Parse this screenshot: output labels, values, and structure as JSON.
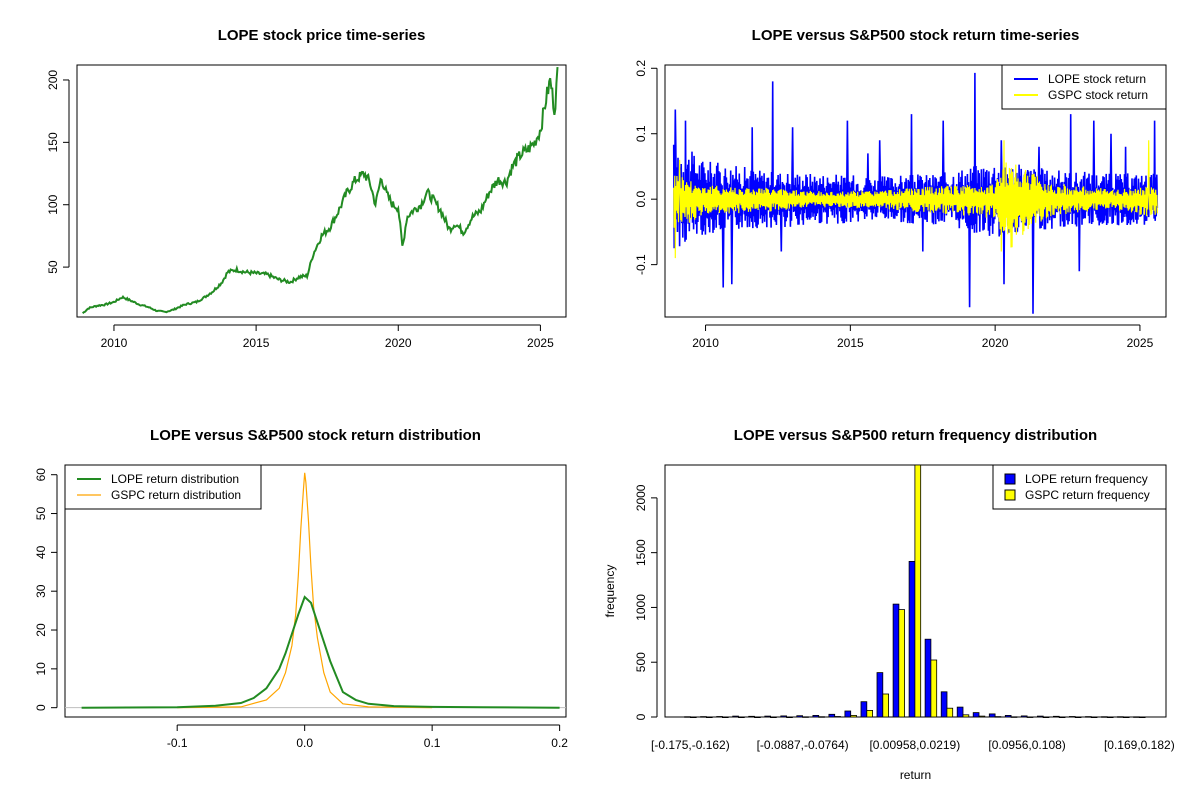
{
  "colors": {
    "price": "#228B22",
    "lope": "#0000FF",
    "gspc": "#FFFF00",
    "gspc_density": "#FFA500",
    "lope_density": "#228B22",
    "zero_line": "#BEBEBE"
  },
  "chart_data": [
    {
      "id": "price",
      "type": "line",
      "title": "LOPE stock price time-series",
      "xlabel": "",
      "ylabel": "",
      "xlim": [
        2008.7,
        2025.9
      ],
      "ylim": [
        10,
        212
      ],
      "x_ticks": [
        2010,
        2015,
        2020,
        2025
      ],
      "x_tick_labels": [
        "2010",
        "2015",
        "2020",
        "2025"
      ],
      "y_ticks": [
        50,
        100,
        150,
        200
      ],
      "y_tick_labels": [
        "50",
        "100",
        "150",
        "200"
      ],
      "grid": false,
      "series": [
        {
          "color": "#228B22",
          "x": [
            2008.9,
            2009.1,
            2009.4,
            2009.7,
            2010.0,
            2010.3,
            2010.6,
            2010.9,
            2011.2,
            2011.5,
            2011.8,
            2012.1,
            2012.5,
            2012.9,
            2013.2,
            2013.5,
            2013.8,
            2014.0,
            2014.3,
            2014.6,
            2015.0,
            2015.4,
            2015.8,
            2016.2,
            2016.5,
            2016.8,
            2017.0,
            2017.3,
            2017.6,
            2017.9,
            2018.2,
            2018.5,
            2018.8,
            2019.0,
            2019.2,
            2019.4,
            2019.6,
            2019.8,
            2020.0,
            2020.15,
            2020.3,
            2020.5,
            2020.8,
            2021.0,
            2021.2,
            2021.5,
            2021.8,
            2022.0,
            2022.3,
            2022.6,
            2022.9,
            2023.2,
            2023.5,
            2023.8,
            2024.0,
            2024.3,
            2024.6,
            2024.8,
            2025.0,
            2025.2,
            2025.35,
            2025.5,
            2025.6
          ],
          "y": [
            13,
            17,
            19,
            20,
            22,
            26,
            23,
            20,
            18,
            15,
            14,
            16,
            20,
            22,
            26,
            31,
            38,
            46,
            48,
            46,
            45,
            44,
            40,
            38,
            42,
            43,
            60,
            75,
            82,
            95,
            110,
            120,
            125,
            118,
            100,
            122,
            108,
            100,
            98,
            65,
            90,
            95,
            100,
            110,
            105,
            95,
            80,
            85,
            78,
            90,
            95,
            110,
            120,
            118,
            130,
            140,
            145,
            150,
            160,
            185,
            200,
            175,
            205
          ]
        }
      ]
    },
    {
      "id": "returns",
      "type": "line",
      "title": "LOPE versus S&P500 stock return time-series",
      "xlabel": "",
      "ylabel": "",
      "xlim": [
        2008.6,
        2025.9
      ],
      "ylim": [
        -0.18,
        0.205
      ],
      "x_ticks": [
        2010,
        2015,
        2020,
        2025
      ],
      "x_tick_labels": [
        "2010",
        "2015",
        "2020",
        "2025"
      ],
      "y_ticks": [
        -0.1,
        0.0,
        0.1,
        0.2
      ],
      "y_tick_labels": [
        "-0.1",
        "0.0",
        "0.1",
        "0.2"
      ],
      "grid": false,
      "legend_position": "top-right",
      "series": [
        {
          "name": "LOPE stock return",
          "color": "#0000FF",
          "band_x": [
            2008.9,
            2010.0,
            2012.0,
            2014.0,
            2016.0,
            2018.0,
            2020.0,
            2022.0,
            2024.0,
            2025.6
          ],
          "band_hi": [
            0.09,
            0.06,
            0.045,
            0.04,
            0.035,
            0.04,
            0.06,
            0.045,
            0.04,
            0.04
          ],
          "band_lo": [
            -0.08,
            -0.055,
            -0.045,
            -0.04,
            -0.035,
            -0.04,
            -0.06,
            -0.045,
            -0.04,
            -0.04
          ],
          "spikes": [
            [
              2008.95,
              0.137
            ],
            [
              2009.3,
              0.12
            ],
            [
              2010.6,
              -0.135
            ],
            [
              2010.9,
              -0.13
            ],
            [
              2011.6,
              0.11
            ],
            [
              2012.3,
              0.18
            ],
            [
              2012.6,
              -0.08
            ],
            [
              2013.0,
              0.11
            ],
            [
              2014.9,
              0.12
            ],
            [
              2015.6,
              0.07
            ],
            [
              2016.0,
              0.09
            ],
            [
              2017.1,
              0.13
            ],
            [
              2017.5,
              -0.08
            ],
            [
              2018.2,
              0.12
            ],
            [
              2019.1,
              -0.165
            ],
            [
              2019.3,
              0.193
            ],
            [
              2020.2,
              0.09
            ],
            [
              2020.3,
              -0.13
            ],
            [
              2021.3,
              -0.175
            ],
            [
              2021.5,
              0.08
            ],
            [
              2022.6,
              0.13
            ],
            [
              2022.9,
              -0.11
            ],
            [
              2023.4,
              0.12
            ],
            [
              2024.0,
              0.1
            ],
            [
              2024.5,
              0.08
            ],
            [
              2025.5,
              0.12
            ]
          ]
        },
        {
          "name": "GSPC stock return",
          "color": "#FFFF00",
          "band_x": [
            2008.9,
            2009.3,
            2010.0,
            2012.0,
            2014.0,
            2016.0,
            2018.0,
            2020.0,
            2020.4,
            2022.0,
            2024.0,
            2025.6
          ],
          "band_hi": [
            0.045,
            0.035,
            0.022,
            0.018,
            0.012,
            0.014,
            0.02,
            0.025,
            0.06,
            0.025,
            0.015,
            0.02
          ],
          "band_lo": [
            -0.05,
            -0.04,
            -0.025,
            -0.02,
            -0.013,
            -0.015,
            -0.022,
            -0.03,
            -0.08,
            -0.025,
            -0.015,
            -0.03
          ],
          "spikes": [
            [
              2008.95,
              -0.09
            ],
            [
              2009.1,
              0.06
            ],
            [
              2020.2,
              -0.08
            ],
            [
              2020.3,
              0.09
            ],
            [
              2025.3,
              0.09
            ]
          ]
        }
      ]
    },
    {
      "id": "density",
      "type": "line",
      "title": "LOPE versus S&P500 stock return distribution",
      "xlabel": "",
      "ylabel": "",
      "xlim": [
        -0.188,
        0.205
      ],
      "ylim": [
        -2.4,
        62.5
      ],
      "x_ticks": [
        -0.1,
        0.0,
        0.1,
        0.2
      ],
      "x_tick_labels": [
        "-0.1",
        "0.0",
        "0.1",
        "0.2"
      ],
      "y_ticks": [
        0,
        10,
        20,
        30,
        40,
        50,
        60
      ],
      "y_tick_labels": [
        "0",
        "10",
        "20",
        "30",
        "40",
        "50",
        "60"
      ],
      "grid": false,
      "legend_position": "top-left",
      "series": [
        {
          "name": "LOPE return distribution",
          "color": "#228B22",
          "x": [
            -0.175,
            -0.1,
            -0.07,
            -0.05,
            -0.04,
            -0.03,
            -0.02,
            -0.015,
            -0.01,
            -0.005,
            0.0,
            0.005,
            0.01,
            0.015,
            0.02,
            0.025,
            0.03,
            0.04,
            0.05,
            0.07,
            0.1,
            0.14,
            0.2
          ],
          "y": [
            0,
            0.1,
            0.5,
            1.2,
            2.5,
            5,
            10,
            14,
            19,
            24,
            28.5,
            27,
            22,
            17,
            12,
            8,
            4,
            2,
            1,
            0.4,
            0.2,
            0.1,
            0
          ]
        },
        {
          "name": "GSPC return distribution",
          "color": "#FFA500",
          "x": [
            -0.1,
            -0.05,
            -0.03,
            -0.02,
            -0.015,
            -0.01,
            -0.007,
            -0.005,
            -0.003,
            -0.001,
            0.0,
            0.001,
            0.003,
            0.005,
            0.007,
            0.01,
            0.015,
            0.02,
            0.03,
            0.05,
            0.1
          ],
          "y": [
            0,
            0.2,
            2,
            5,
            9,
            16,
            24,
            34,
            46,
            56,
            60.5,
            58,
            48,
            36,
            26,
            18,
            9,
            4,
            1,
            0.2,
            0
          ]
        }
      ]
    },
    {
      "id": "frequency",
      "type": "bar",
      "title": "LOPE versus S&P500 return frequency distribution",
      "xlabel": "return",
      "ylabel": "frequency",
      "ylim": [
        0,
        2300
      ],
      "y_ticks": [
        0,
        500,
        1000,
        1500,
        2000
      ],
      "y_tick_labels": [
        "0",
        "500",
        "1000",
        "1500",
        "2000"
      ],
      "grid": false,
      "legend_position": "top-right",
      "categories": [
        "[-0.175,-0.162)",
        "",
        "",
        "",
        "",
        "",
        "",
        "[-0.0887,-0.0764)",
        "",
        "",
        "",
        "",
        "",
        "",
        "[0.00958,0.0219)",
        "",
        "",
        "",
        "",
        "",
        "",
        "[0.0956,0.108)",
        "",
        "",
        "",
        "",
        "",
        "",
        "[0.169,0.182)"
      ],
      "series": [
        {
          "name": "LOPE return frequency",
          "color": "#0000FF",
          "values": [
            3,
            4,
            5,
            8,
            6,
            8,
            10,
            12,
            15,
            25,
            55,
            140,
            405,
            1030,
            1420,
            710,
            230,
            90,
            40,
            28,
            15,
            10,
            8,
            6,
            5,
            4,
            3,
            3,
            2
          ]
        },
        {
          "name": "GSPC return frequency",
          "color": "#FFFF00",
          "values": [
            0,
            0,
            0,
            0,
            0,
            0,
            0,
            2,
            3,
            5,
            15,
            60,
            210,
            980,
            2300,
            520,
            80,
            20,
            8,
            4,
            2,
            1,
            0,
            0,
            0,
            0,
            0,
            0,
            0
          ]
        }
      ]
    }
  ]
}
